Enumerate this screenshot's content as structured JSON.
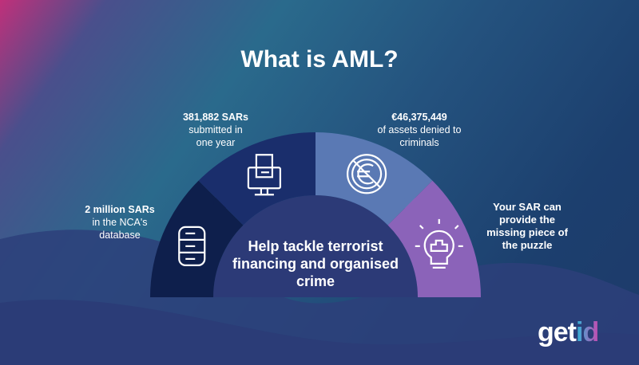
{
  "title": "What is AML?",
  "segments": [
    {
      "bold": "2 million SARs",
      "text": "in the NCA's database",
      "icon": "database-icon",
      "color": "#0e1f4c"
    },
    {
      "bold": "381,882 SARs",
      "text": "submitted in one year",
      "icon": "computer-document-icon",
      "color": "#1a2e6c"
    },
    {
      "bold": "€46,375,449",
      "text": "of assets denied to criminals",
      "icon": "no-euro-icon",
      "color": "#5a79b4"
    },
    {
      "bold": "Your SAR can provide the missing piece of the puzzle",
      "text": "",
      "icon": "lightbulb-puzzle-icon",
      "color": "#8b63b9"
    }
  ],
  "center_text": "Help tackle terrorist financing and organised crime",
  "logo": {
    "part1": "get",
    "part2": "id"
  }
}
